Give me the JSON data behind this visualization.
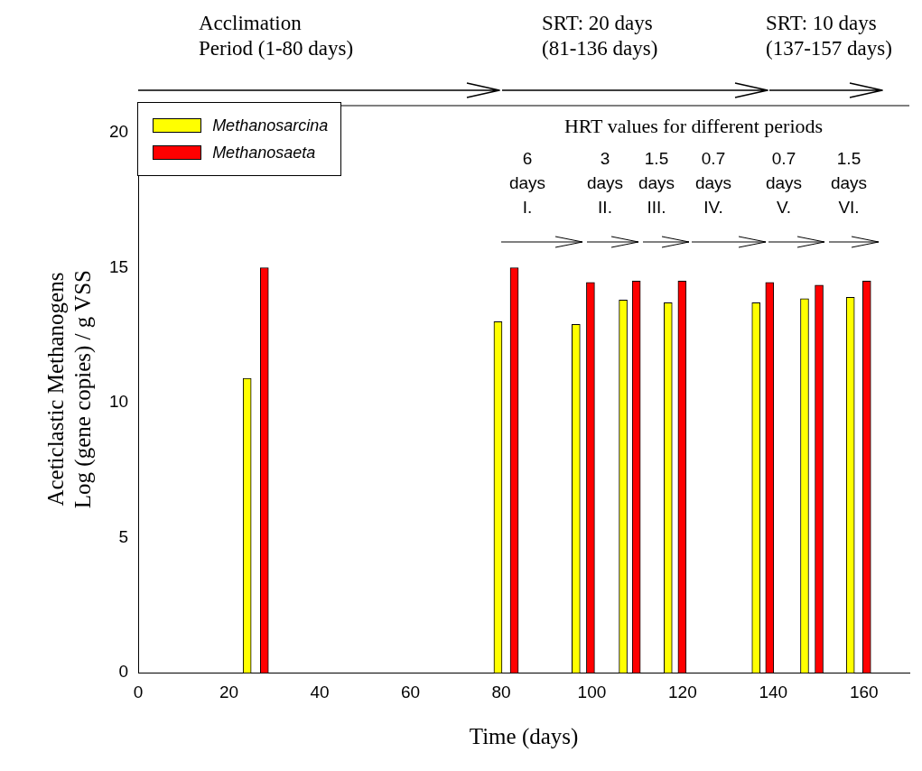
{
  "chart_data": {
    "type": "bar",
    "xlabel": "Time (days)",
    "ylabel": "Aceticlastic Methanogens\nLog (gene copies) / g VSS",
    "xlim": [
      0,
      170
    ],
    "xticks": [
      0,
      20,
      40,
      60,
      80,
      100,
      120,
      140,
      160
    ],
    "ylim": [
      0,
      21
    ],
    "yticks": [
      0,
      5,
      10,
      15,
      20
    ],
    "series": [
      {
        "name": "Methanosarcina",
        "color": "#ffff00",
        "x": [
          24,
          79.3,
          96.5,
          106.9,
          116.8,
          136.2,
          146.9,
          157
        ],
        "values": [
          10.9,
          13.0,
          12.9,
          13.8,
          13.7,
          13.7,
          13.85,
          13.9
        ]
      },
      {
        "name": "Methanosaeta",
        "color": "#ff0000",
        "x": [
          27.8,
          82.9,
          99.7,
          109.8,
          119.9,
          139.2,
          150.1,
          160.6
        ],
        "values": [
          15.0,
          15.0,
          14.45,
          14.5,
          14.5,
          14.45,
          14.35,
          14.5
        ]
      }
    ],
    "annotations": [
      "Acclimation\nPeriod (1-80 days)",
      "SRT: 20 days\n(81-136 days)",
      "SRT: 10 days\n(137-157 days)",
      "HRT values for different periods",
      "6\ndays\nI.",
      "3\ndays\nII.",
      "1.5\ndays\nIII.",
      "0.7\ndays\nIV.",
      "0.7\ndays\nV.",
      "1.5\ndays\nVI."
    ],
    "legend": "top left",
    "grid": false
  }
}
